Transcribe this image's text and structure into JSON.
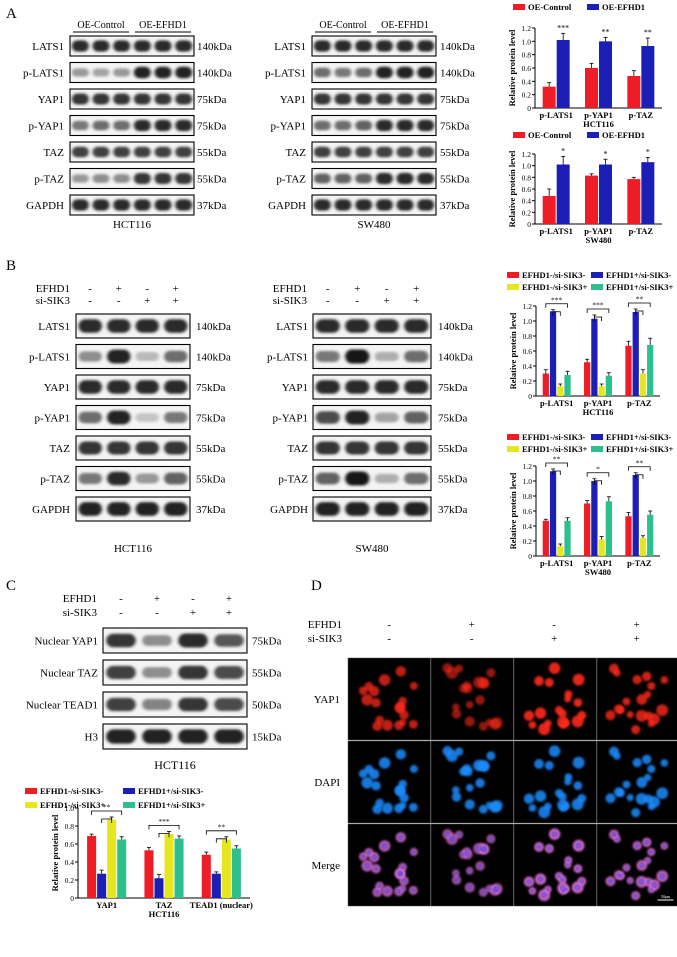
{
  "panel_letters": {
    "a": "A",
    "b": "B",
    "c": "C",
    "d": "D"
  },
  "colors": {
    "red": "#ee1c24",
    "blue": "#1b1fb5",
    "yellow": "#e6e61e",
    "green": "#2dbf8c",
    "band_dark": "#1a1a1a",
    "band_bg": "#d6d6d6",
    "fluor_bg": "#000000",
    "yap_red": "#ff2a1e",
    "dapi_blue": "#1e8cff",
    "merge_pink": "#e070d8"
  },
  "panel_a": {
    "groups": [
      "OE-Control",
      "OE-EFHD1"
    ],
    "lanes_per_group": 3,
    "blots": [
      {
        "cell_line": "HCT116",
        "proteins": [
          {
            "label": "LATS1",
            "kda": "140kDa",
            "intensity": [
              0.85,
              0.85,
              0.85,
              0.85,
              0.85,
              0.85
            ]
          },
          {
            "label": "p-LATS1",
            "kda": "140kDa",
            "intensity": [
              0.35,
              0.3,
              0.35,
              0.9,
              0.9,
              0.9
            ]
          },
          {
            "label": "YAP1",
            "kda": "75kDa",
            "intensity": [
              0.8,
              0.8,
              0.8,
              0.8,
              0.8,
              0.8
            ]
          },
          {
            "label": "p-YAP1",
            "kda": "75kDa",
            "intensity": [
              0.5,
              0.55,
              0.55,
              0.85,
              0.85,
              0.85
            ]
          },
          {
            "label": "TAZ",
            "kda": "55kDa",
            "intensity": [
              0.75,
              0.75,
              0.75,
              0.75,
              0.75,
              0.75
            ]
          },
          {
            "label": "p-TAZ",
            "kda": "55kDa",
            "intensity": [
              0.35,
              0.4,
              0.4,
              0.8,
              0.8,
              0.8
            ]
          },
          {
            "label": "GAPDH",
            "kda": "37kDa",
            "intensity": [
              0.85,
              0.85,
              0.85,
              0.85,
              0.85,
              0.85
            ]
          }
        ]
      },
      {
        "cell_line": "SW480",
        "proteins": [
          {
            "label": "LATS1",
            "kda": "140kDa",
            "intensity": [
              0.85,
              0.85,
              0.85,
              0.85,
              0.85,
              0.85
            ]
          },
          {
            "label": "p-LATS1",
            "kda": "140kDa",
            "intensity": [
              0.55,
              0.5,
              0.55,
              0.9,
              0.9,
              0.9
            ]
          },
          {
            "label": "YAP1",
            "kda": "75kDa",
            "intensity": [
              0.8,
              0.8,
              0.8,
              0.8,
              0.8,
              0.8
            ]
          },
          {
            "label": "p-YAP1",
            "kda": "75kDa",
            "intensity": [
              0.55,
              0.55,
              0.6,
              0.85,
              0.85,
              0.85
            ]
          },
          {
            "label": "TAZ",
            "kda": "55kDa",
            "intensity": [
              0.75,
              0.75,
              0.75,
              0.75,
              0.75,
              0.75
            ]
          },
          {
            "label": "p-TAZ",
            "kda": "55kDa",
            "intensity": [
              0.6,
              0.6,
              0.6,
              0.85,
              0.85,
              0.85
            ]
          },
          {
            "label": "GAPDH",
            "kda": "37kDa",
            "intensity": [
              0.85,
              0.85,
              0.85,
              0.85,
              0.85,
              0.85
            ]
          }
        ]
      }
    ]
  },
  "panel_b": {
    "conditions": [
      {
        "label": "EFHD1",
        "values": [
          "-",
          "+",
          "-",
          "+"
        ]
      },
      {
        "label": "si-SIK3",
        "values": [
          "-",
          "-",
          "+",
          "+"
        ]
      }
    ],
    "blots": [
      {
        "cell_line": "HCT116",
        "proteins": [
          {
            "label": "LATS1",
            "kda": "140kDa",
            "intensity": [
              0.85,
              0.85,
              0.85,
              0.85
            ]
          },
          {
            "label": "p-LATS1",
            "kda": "140kDa",
            "intensity": [
              0.4,
              0.9,
              0.2,
              0.55
            ]
          },
          {
            "label": "YAP1",
            "kda": "75kDa",
            "intensity": [
              0.85,
              0.85,
              0.85,
              0.85
            ]
          },
          {
            "label": "p-YAP1",
            "kda": "75kDa",
            "intensity": [
              0.55,
              0.9,
              0.15,
              0.5
            ]
          },
          {
            "label": "TAZ",
            "kda": "55kDa",
            "intensity": [
              0.8,
              0.8,
              0.8,
              0.8
            ]
          },
          {
            "label": "p-TAZ",
            "kda": "55kDa",
            "intensity": [
              0.5,
              0.85,
              0.35,
              0.6
            ]
          },
          {
            "label": "GAPDH",
            "kda": "37kDa",
            "intensity": [
              0.9,
              0.9,
              0.9,
              0.9
            ]
          }
        ]
      },
      {
        "cell_line": "SW480",
        "proteins": [
          {
            "label": "LATS1",
            "kda": "140kDa",
            "intensity": [
              0.85,
              0.85,
              0.85,
              0.85
            ]
          },
          {
            "label": "p-LATS1",
            "kda": "140kDa",
            "intensity": [
              0.5,
              0.95,
              0.25,
              0.55
            ]
          },
          {
            "label": "YAP1",
            "kda": "75kDa",
            "intensity": [
              0.85,
              0.85,
              0.85,
              0.85
            ]
          },
          {
            "label": "p-YAP1",
            "kda": "75kDa",
            "intensity": [
              0.7,
              0.9,
              0.3,
              0.6
            ]
          },
          {
            "label": "TAZ",
            "kda": "55kDa",
            "intensity": [
              0.8,
              0.8,
              0.8,
              0.8
            ]
          },
          {
            "label": "p-TAZ",
            "kda": "55kDa",
            "intensity": [
              0.6,
              0.95,
              0.25,
              0.55
            ]
          },
          {
            "label": "GAPDH",
            "kda": "37kDa",
            "intensity": [
              0.9,
              0.9,
              0.9,
              0.9
            ]
          }
        ]
      }
    ]
  },
  "panel_c": {
    "conditions": [
      {
        "label": "EFHD1",
        "values": [
          "-",
          "+",
          "-",
          "+"
        ]
      },
      {
        "label": "si-SIK3",
        "values": [
          "-",
          "-",
          "+",
          "+"
        ]
      }
    ],
    "cell_line": "HCT116",
    "proteins": [
      {
        "label": "Nuclear YAP1",
        "kda": "75kDa",
        "intensity": [
          0.8,
          0.4,
          0.85,
          0.65
        ]
      },
      {
        "label": "Nuclear TAZ",
        "kda": "55kDa",
        "intensity": [
          0.75,
          0.4,
          0.8,
          0.7
        ]
      },
      {
        "label": "Nuclear TEAD1",
        "kda": "50kDa",
        "intensity": [
          0.75,
          0.45,
          0.8,
          0.7
        ]
      },
      {
        "label": "H3",
        "kda": "15kDa",
        "intensity": [
          0.9,
          0.9,
          0.9,
          0.9
        ]
      }
    ]
  },
  "panel_d": {
    "conditions": [
      {
        "label": "EFHD1",
        "values": [
          "-",
          "+",
          "-",
          "+"
        ]
      },
      {
        "label": "si-SIK3",
        "values": [
          "-",
          "-",
          "+",
          "+"
        ]
      }
    ],
    "rows": [
      {
        "label": "YAP1",
        "stain": "yap",
        "brightness": [
          0.6,
          0.35,
          0.85,
          0.7
        ]
      },
      {
        "label": "DAPI",
        "stain": "dapi",
        "brightness": [
          0.8,
          0.8,
          0.8,
          0.8
        ]
      },
      {
        "label": "Merge",
        "stain": "merge",
        "brightness": [
          0.7,
          0.55,
          0.85,
          0.75
        ]
      }
    ],
    "scale_bar": "50μm"
  },
  "chart_data": [
    {
      "id": "a1",
      "type": "bar",
      "ylabel": "Relative protein level",
      "xlabel": "HCT116",
      "categories": [
        "p-LATS1",
        "p-YAP1",
        "p-TAZ"
      ],
      "ylim": [
        0,
        1.2
      ],
      "yticks": [
        0,
        0.2,
        0.4,
        0.6,
        0.8,
        1.0,
        1.2
      ],
      "series": [
        {
          "name": "OE-Control",
          "color": "#ee1c24",
          "values": [
            0.32,
            0.6,
            0.48
          ],
          "errors": [
            0.06,
            0.07,
            0.08
          ]
        },
        {
          "name": "OE-EFHD1",
          "color": "#1b1fb5",
          "values": [
            1.02,
            1.0,
            0.93
          ],
          "errors": [
            0.1,
            0.06,
            0.12
          ]
        }
      ],
      "stars": [
        "***",
        "**",
        "**"
      ]
    },
    {
      "id": "a2",
      "type": "bar",
      "ylabel": "Relative protein level",
      "xlabel": "SW480",
      "categories": [
        "p-LATS1",
        "p-YAP1",
        "p-TAZ"
      ],
      "ylim": [
        0,
        1.2
      ],
      "yticks": [
        0,
        0.2,
        0.4,
        0.6,
        0.8,
        1.0,
        1.2
      ],
      "series": [
        {
          "name": "OE-Control",
          "color": "#ee1c24",
          "values": [
            0.48,
            0.83,
            0.77
          ],
          "errors": [
            0.12,
            0.03,
            0.03
          ]
        },
        {
          "name": "OE-EFHD1",
          "color": "#1b1fb5",
          "values": [
            1.02,
            1.02,
            1.06
          ],
          "errors": [
            0.14,
            0.09,
            0.08
          ]
        }
      ],
      "stars": [
        "*",
        "*",
        "*"
      ]
    },
    {
      "id": "b1",
      "type": "bar",
      "ylabel": "Relative protein level",
      "xlabel": "HCT116",
      "categories": [
        "p-LATS1",
        "p-YAP1",
        "p-TAZ"
      ],
      "ylim": [
        0,
        1.2
      ],
      "yticks": [
        0,
        0.2,
        0.4,
        0.6,
        0.8,
        1.0,
        1.2
      ],
      "series": [
        {
          "name": "EFHD1-/si-SIK3-",
          "color": "#ee1c24",
          "values": [
            0.3,
            0.45,
            0.67
          ],
          "errors": [
            0.05,
            0.04,
            0.06
          ]
        },
        {
          "name": "EFHD1+/si-SIK3-",
          "color": "#1b1fb5",
          "values": [
            1.13,
            1.03,
            1.12
          ],
          "errors": [
            0.02,
            0.05,
            0.04
          ]
        },
        {
          "name": "EFHD1-/si-SIK3+",
          "color": "#e6e61e",
          "values": [
            0.13,
            0.13,
            0.3
          ],
          "errors": [
            0.03,
            0.03,
            0.05
          ]
        },
        {
          "name": "EFHD1+/si-SIK3+",
          "color": "#2dbf8c",
          "values": [
            0.28,
            0.27,
            0.68
          ],
          "errors": [
            0.05,
            0.04,
            0.09
          ]
        }
      ],
      "stars": [
        "***",
        "***",
        "**"
      ]
    },
    {
      "id": "b2",
      "type": "bar",
      "ylabel": "Relative protein level",
      "xlabel": "SW480",
      "categories": [
        "p-LATS1",
        "p-YAP1",
        "p-TAZ"
      ],
      "ylim": [
        0,
        1.2
      ],
      "yticks": [
        0,
        0.2,
        0.4,
        0.6,
        0.8,
        1.0,
        1.2
      ],
      "series": [
        {
          "name": "EFHD1-/si-SIK3-",
          "color": "#ee1c24",
          "values": [
            0.47,
            0.7,
            0.53
          ],
          "errors": [
            0.02,
            0.04,
            0.05
          ]
        },
        {
          "name": "EFHD1+/si-SIK3-",
          "color": "#1b1fb5",
          "values": [
            1.13,
            1.0,
            1.08
          ],
          "errors": [
            0.03,
            0.03,
            0.03
          ]
        },
        {
          "name": "EFHD1-/si-SIK3+",
          "color": "#e6e61e",
          "values": [
            0.13,
            0.22,
            0.24
          ],
          "errors": [
            0.03,
            0.04,
            0.03
          ]
        },
        {
          "name": "EFHD1+/si-SIK3+",
          "color": "#2dbf8c",
          "values": [
            0.47,
            0.73,
            0.55
          ],
          "errors": [
            0.04,
            0.06,
            0.05
          ]
        }
      ],
      "stars": [
        "**",
        "*",
        "**"
      ]
    },
    {
      "id": "c",
      "type": "bar",
      "ylabel": "Relative protein level",
      "xlabel": "HCT116",
      "categories": [
        "YAP1",
        "TAZ",
        "TEAD1 (nuclear)"
      ],
      "ylim": [
        0,
        1.0
      ],
      "yticks": [
        0,
        0.2,
        0.4,
        0.6,
        0.8,
        1.0
      ],
      "series": [
        {
          "name": "EFHD1-/si-SIK3-",
          "color": "#ee1c24",
          "values": [
            0.69,
            0.53,
            0.48
          ],
          "errors": [
            0.02,
            0.03,
            0.03
          ]
        },
        {
          "name": "EFHD1+/si-SIK3-",
          "color": "#1b1fb5",
          "values": [
            0.27,
            0.22,
            0.27
          ],
          "errors": [
            0.04,
            0.04,
            0.02
          ]
        },
        {
          "name": "EFHD1-/si-SIK3+",
          "color": "#e6e61e",
          "values": [
            0.87,
            0.71,
            0.65
          ],
          "errors": [
            0.03,
            0.03,
            0.03
          ]
        },
        {
          "name": "EFHD1+/si-SIK3+",
          "color": "#2dbf8c",
          "values": [
            0.65,
            0.66,
            0.55
          ],
          "errors": [
            0.03,
            0.03,
            0.03
          ]
        }
      ],
      "stars": [
        "**",
        "***",
        "**"
      ]
    }
  ]
}
